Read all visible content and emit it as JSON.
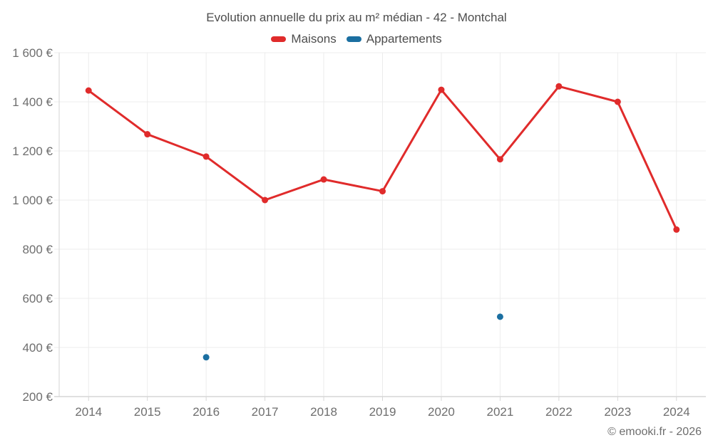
{
  "chart": {
    "title": "Evolution annuelle du prix au m² médian - 42 - Montchal",
    "footer": "© emooki.fr - 2026"
  },
  "legend": {
    "items": [
      {
        "label": "Maisons",
        "color": "#e02b2b"
      },
      {
        "label": "Appartements",
        "color": "#1b6fa1"
      }
    ]
  },
  "chart_data": {
    "type": "line",
    "title": "Evolution annuelle du prix au m² médian - 42 - Montchal",
    "categories": [
      "2014",
      "2015",
      "2016",
      "2017",
      "2018",
      "2019",
      "2020",
      "2021",
      "2022",
      "2023",
      "2024"
    ],
    "series": [
      {
        "name": "Maisons",
        "color": "#e02b2b",
        "style": "line-with-markers",
        "values": [
          1446,
          1268,
          1177,
          1000,
          1084,
          1036,
          1449,
          1166,
          1463,
          1400,
          880
        ]
      },
      {
        "name": "Appartements",
        "color": "#1b6fa1",
        "style": "markers-only",
        "values": [
          null,
          null,
          360,
          null,
          null,
          null,
          null,
          525,
          null,
          null,
          null
        ]
      }
    ],
    "xlabel": "",
    "ylabel": "",
    "ylim": [
      200,
      1600
    ],
    "ytick_values": [
      200,
      400,
      600,
      800,
      1000,
      1200,
      1400,
      1600
    ],
    "ytick_labels": [
      "200 €",
      "400 €",
      "600 €",
      "800 €",
      "1 000 €",
      "1 200 €",
      "1 400 €",
      "1 600 €"
    ],
    "grid": true,
    "legend_position": "top-center",
    "footer": "© emooki.fr - 2026"
  },
  "colors": {
    "grid": "#ececec",
    "axis": "#d6d6d6",
    "title_text": "#4d4d4d",
    "tick_text": "#6e6e6e"
  }
}
